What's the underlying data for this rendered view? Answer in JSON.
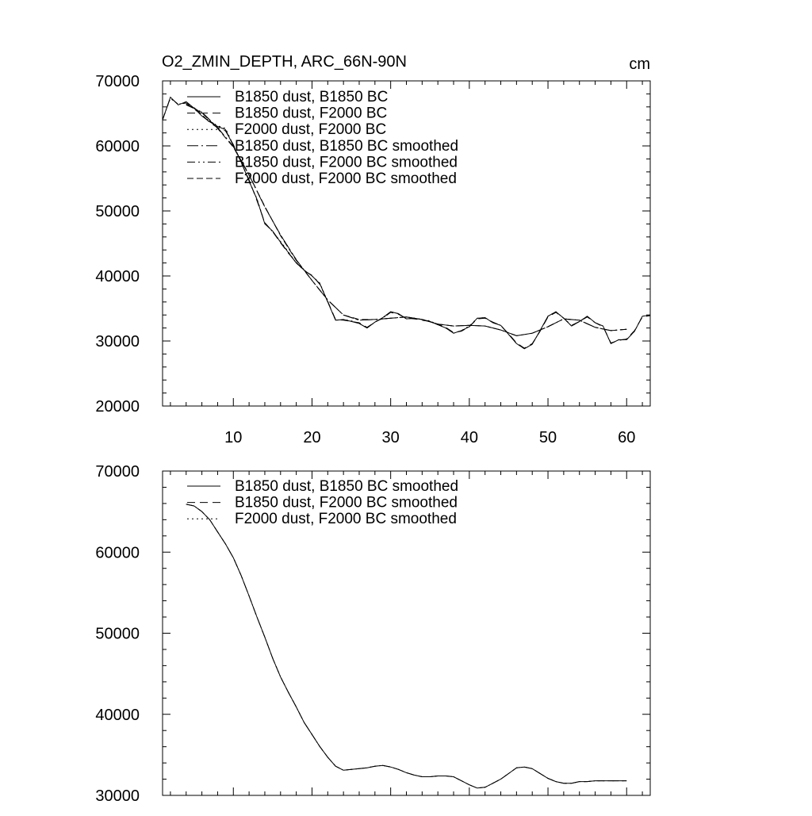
{
  "figure": {
    "title": "O2_ZMIN_DEPTH, ARC_66N-90N",
    "units": "cm"
  },
  "chart_data": [
    {
      "type": "line",
      "title": "O2_ZMIN_DEPTH, ARC_66N-90N",
      "units": "cm",
      "xlim": [
        1,
        63
      ],
      "ylim": [
        20000,
        70000
      ],
      "x_ticks": [
        10,
        20,
        30,
        40,
        50,
        60
      ],
      "x_tick_labels": [
        "10",
        "20",
        "30",
        "40",
        "50",
        "60"
      ],
      "y_ticks": [
        20000,
        30000,
        40000,
        50000,
        60000,
        70000
      ],
      "y_tick_labels": [
        "20000",
        "30000",
        "40000",
        "50000",
        "60000",
        "70000"
      ],
      "grid": false,
      "legend_position": "top-left",
      "legend": [
        "B1850 dust, B1850 BC",
        "B1850 dust, F2000 BC",
        "F2000 dust, F2000 BC",
        "B1850 dust, B1850 BC smoothed",
        "B1850 dust, F2000 BC smoothed",
        "F2000 dust, F2000 BC smoothed"
      ],
      "series": [
        {
          "name": "B1850 dust, B1850 BC",
          "dash": "solid",
          "x": [
            1,
            2,
            3,
            4,
            5,
            6,
            7,
            8,
            9,
            10,
            11,
            12,
            13,
            14,
            15,
            16,
            17,
            18,
            19,
            20,
            21,
            22,
            23,
            24,
            25,
            26,
            27,
            28,
            29,
            30,
            31,
            32,
            33,
            34,
            35,
            36,
            37,
            38,
            39,
            40,
            41,
            42,
            43,
            44,
            45,
            46,
            47,
            48,
            49,
            50,
            51,
            52,
            53,
            54,
            55,
            56,
            57,
            58,
            59,
            60,
            61,
            62,
            63
          ],
          "y": [
            64000,
            67500,
            66300,
            66800,
            65800,
            64600,
            63700,
            63000,
            62500,
            60000,
            57500,
            54600,
            51800,
            48000,
            46900,
            45200,
            43600,
            42000,
            40900,
            40000,
            38800,
            36000,
            33200,
            33300,
            33000,
            32700,
            32000,
            32900,
            33600,
            34500,
            34200,
            33400,
            33500,
            33300,
            33000,
            32500,
            32000,
            31200,
            31600,
            32200,
            33500,
            33600,
            32800,
            32400,
            31000,
            29600,
            28800,
            29500,
            31600,
            33800,
            34500,
            33500,
            32300,
            33000,
            33800,
            32800,
            32300,
            29600,
            30200,
            30200,
            31500,
            33800,
            34000
          ]
        },
        {
          "name": "B1850 dust, F2000 BC",
          "dash": "10 6",
          "x": [
            1,
            2,
            3,
            4,
            5,
            6,
            7,
            8,
            9,
            10,
            11,
            12,
            13,
            14,
            15,
            16,
            17,
            18,
            19,
            20,
            21,
            22,
            23,
            24,
            25,
            26,
            27,
            28,
            29,
            30,
            31,
            32,
            33,
            34,
            35,
            36,
            37,
            38,
            39,
            40,
            41,
            42,
            43,
            44,
            45,
            46,
            47,
            48,
            49,
            50,
            51,
            52,
            53,
            54,
            55,
            56,
            57,
            58,
            59,
            60,
            61,
            62,
            63
          ],
          "y": [
            64000,
            67400,
            66400,
            66600,
            65900,
            64800,
            63600,
            62800,
            62300,
            60200,
            57400,
            54800,
            51600,
            48200,
            46800,
            45100,
            43500,
            42100,
            40800,
            40100,
            38700,
            36100,
            33300,
            33200,
            33000,
            32800,
            32100,
            32900,
            33500,
            34400,
            34100,
            33500,
            33400,
            33200,
            33000,
            32600,
            32100,
            31300,
            31500,
            32200,
            33400,
            33500,
            32900,
            32400,
            31100,
            29700,
            28900,
            29600,
            31500,
            33700,
            34400,
            33500,
            32400,
            33000,
            33700,
            32800,
            32200,
            29700,
            30100,
            30300,
            31600,
            33700,
            33900
          ]
        },
        {
          "name": "F2000 dust, F2000 BC",
          "dash": "2 4",
          "x": [
            1,
            2,
            3,
            4,
            5,
            6,
            7,
            8,
            9,
            10,
            11,
            12,
            13,
            14,
            15,
            16,
            17,
            18,
            19,
            20,
            21,
            22,
            23,
            24,
            25,
            26,
            27,
            28,
            29,
            30,
            31,
            32,
            33,
            34,
            35,
            36,
            37,
            38,
            39,
            40,
            41,
            42,
            43,
            44,
            45,
            46,
            47,
            48,
            49,
            50,
            51,
            52,
            53,
            54,
            55,
            56,
            57,
            58,
            59,
            60,
            61,
            62,
            63
          ],
          "y": [
            64100,
            67300,
            66400,
            66700,
            65700,
            64700,
            63800,
            63100,
            62700,
            60100,
            57600,
            54500,
            51900,
            48100,
            46800,
            45300,
            43700,
            42000,
            40900,
            40000,
            38900,
            36000,
            33200,
            33300,
            33100,
            32700,
            32000,
            32900,
            33500,
            34500,
            34200,
            33400,
            33500,
            33300,
            33100,
            32500,
            32000,
            31200,
            31600,
            32300,
            33500,
            33600,
            32800,
            32400,
            31000,
            29600,
            28800,
            29500,
            31600,
            33800,
            34500,
            33500,
            32300,
            33000,
            33800,
            32800,
            32300,
            29600,
            30200,
            30200,
            31500,
            33800,
            34000
          ]
        },
        {
          "name": "B1850 dust, B1850 BC smoothed",
          "dash": "14 4 2 4",
          "x": [
            4,
            6,
            8,
            10,
            12,
            14,
            16,
            18,
            20,
            22,
            24,
            26,
            28,
            30,
            32,
            34,
            36,
            38,
            40,
            42,
            44,
            46,
            48,
            50,
            52,
            54,
            56,
            58,
            60
          ],
          "y": [
            66400,
            65200,
            62800,
            59900,
            55500,
            50600,
            46300,
            42500,
            39300,
            36300,
            34000,
            33200,
            33300,
            33500,
            33700,
            33300,
            32600,
            32300,
            32400,
            32300,
            31700,
            30800,
            31200,
            32200,
            33400,
            33200,
            32100,
            31600,
            31800
          ]
        },
        {
          "name": "B1850 dust, F2000 BC smoothed",
          "dash": "10 4 2 4 2 4",
          "x": [
            4,
            6,
            8,
            10,
            12,
            14,
            16,
            18,
            20,
            22,
            24,
            26,
            28,
            30,
            32,
            34,
            36,
            38,
            40,
            42,
            44,
            46,
            48,
            50,
            52,
            54,
            56,
            58,
            60
          ],
          "y": [
            66300,
            65200,
            62800,
            59900,
            55600,
            50600,
            46300,
            42500,
            39300,
            36300,
            34000,
            33200,
            33300,
            33500,
            33700,
            33300,
            32600,
            32300,
            32400,
            32300,
            31700,
            30800,
            31200,
            32200,
            33400,
            33200,
            32100,
            31600,
            31800
          ]
        },
        {
          "name": "F2000 dust, F2000 BC smoothed",
          "dash": "8 4",
          "x": [
            4,
            6,
            8,
            10,
            12,
            14,
            16,
            18,
            20,
            22,
            24,
            26,
            28,
            30,
            32,
            34,
            36,
            38,
            40,
            42,
            44,
            46,
            48,
            50,
            52,
            54,
            56,
            58,
            60
          ],
          "y": [
            66400,
            65100,
            62700,
            59800,
            55500,
            50700,
            46200,
            42400,
            39300,
            36300,
            34000,
            33300,
            33300,
            33500,
            33700,
            33300,
            32600,
            32300,
            32400,
            32300,
            31700,
            30800,
            31200,
            32200,
            33400,
            33200,
            32100,
            31600,
            31800
          ]
        }
      ]
    },
    {
      "type": "line",
      "xlim": [
        1,
        63
      ],
      "ylim": [
        30000,
        70000
      ],
      "x_ticks": [
        10,
        20,
        30,
        40,
        50,
        60
      ],
      "y_ticks": [
        30000,
        40000,
        50000,
        60000,
        70000
      ],
      "y_tick_labels": [
        "30000",
        "40000",
        "50000",
        "60000",
        "70000"
      ],
      "grid": false,
      "legend_position": "top-left",
      "legend": [
        "B1850 dust, B1850 BC smoothed",
        "B1850 dust, F2000 BC smoothed",
        "F2000 dust, F2000 BC smoothed"
      ],
      "series": [
        {
          "name": "B1850 dust, B1850 BC smoothed",
          "dash": "solid",
          "x": [
            4,
            5,
            6,
            7,
            8,
            9,
            10,
            11,
            12,
            13,
            14,
            15,
            16,
            17,
            18,
            19,
            20,
            21,
            22,
            23,
            24,
            25,
            26,
            27,
            28,
            29,
            30,
            31,
            32,
            33,
            34,
            35,
            36,
            37,
            38,
            39,
            40,
            41,
            42,
            43,
            44,
            45,
            46,
            47,
            48,
            49,
            50,
            51,
            52,
            53,
            54,
            55,
            56,
            57,
            58,
            59,
            60
          ],
          "y": [
            65900,
            65700,
            65000,
            64000,
            62500,
            61000,
            59300,
            57100,
            54600,
            52000,
            49500,
            46900,
            44600,
            42700,
            40900,
            39000,
            37500,
            36000,
            34700,
            33600,
            33100,
            33200,
            33300,
            33400,
            33600,
            33700,
            33500,
            33200,
            32800,
            32500,
            32300,
            32300,
            32400,
            32400,
            32300,
            31800,
            31300,
            30900,
            31000,
            31500,
            32000,
            32700,
            33400,
            33500,
            33300,
            32700,
            32100,
            31700,
            31500,
            31500,
            31700,
            31700,
            31800,
            31800,
            31800,
            31800,
            31800
          ]
        },
        {
          "name": "B1850 dust, F2000 BC smoothed",
          "dash": "10 6",
          "x": [
            4,
            5,
            6,
            7,
            8,
            9,
            10,
            11,
            12,
            13,
            14,
            15,
            16,
            17,
            18,
            19,
            20,
            21,
            22,
            23,
            24,
            25,
            26,
            27,
            28,
            29,
            30,
            31,
            32,
            33,
            34,
            35,
            36,
            37,
            38,
            39,
            40,
            41,
            42,
            43,
            44,
            45,
            46,
            47,
            48,
            49,
            50,
            51,
            52,
            53,
            54,
            55,
            56,
            57,
            58,
            59,
            60
          ],
          "y": [
            65900,
            65700,
            65000,
            64000,
            62500,
            61000,
            59300,
            57100,
            54600,
            52000,
            49500,
            46900,
            44600,
            42700,
            40900,
            39000,
            37500,
            36000,
            34700,
            33600,
            33100,
            33200,
            33300,
            33400,
            33600,
            33700,
            33500,
            33200,
            32800,
            32500,
            32300,
            32300,
            32400,
            32400,
            32300,
            31800,
            31300,
            30900,
            31000,
            31500,
            32000,
            32700,
            33400,
            33500,
            33300,
            32700,
            32100,
            31700,
            31500,
            31500,
            31700,
            31700,
            31800,
            31800,
            31800,
            31800,
            31800
          ]
        },
        {
          "name": "F2000 dust, F2000 BC smoothed",
          "dash": "2 4",
          "x": [
            4,
            5,
            6,
            7,
            8,
            9,
            10,
            11,
            12,
            13,
            14,
            15,
            16,
            17,
            18,
            19,
            20,
            21,
            22,
            23,
            24,
            25,
            26,
            27,
            28,
            29,
            30,
            31,
            32,
            33,
            34,
            35,
            36,
            37,
            38,
            39,
            40,
            41,
            42,
            43,
            44,
            45,
            46,
            47,
            48,
            49,
            50,
            51,
            52,
            53,
            54,
            55,
            56,
            57,
            58,
            59,
            60
          ],
          "y": [
            65900,
            65700,
            65000,
            64000,
            62500,
            61000,
            59300,
            57100,
            54600,
            52000,
            49500,
            46900,
            44600,
            42700,
            40900,
            39000,
            37500,
            36000,
            34700,
            33600,
            33100,
            33200,
            33300,
            33400,
            33600,
            33700,
            33500,
            33200,
            32800,
            32500,
            32300,
            32300,
            32400,
            32400,
            32300,
            31800,
            31300,
            30900,
            31000,
            31500,
            32000,
            32700,
            33400,
            33500,
            33300,
            32700,
            32100,
            31700,
            31500,
            31500,
            31700,
            31700,
            31800,
            31800,
            31800,
            31800,
            31800
          ]
        }
      ]
    }
  ]
}
